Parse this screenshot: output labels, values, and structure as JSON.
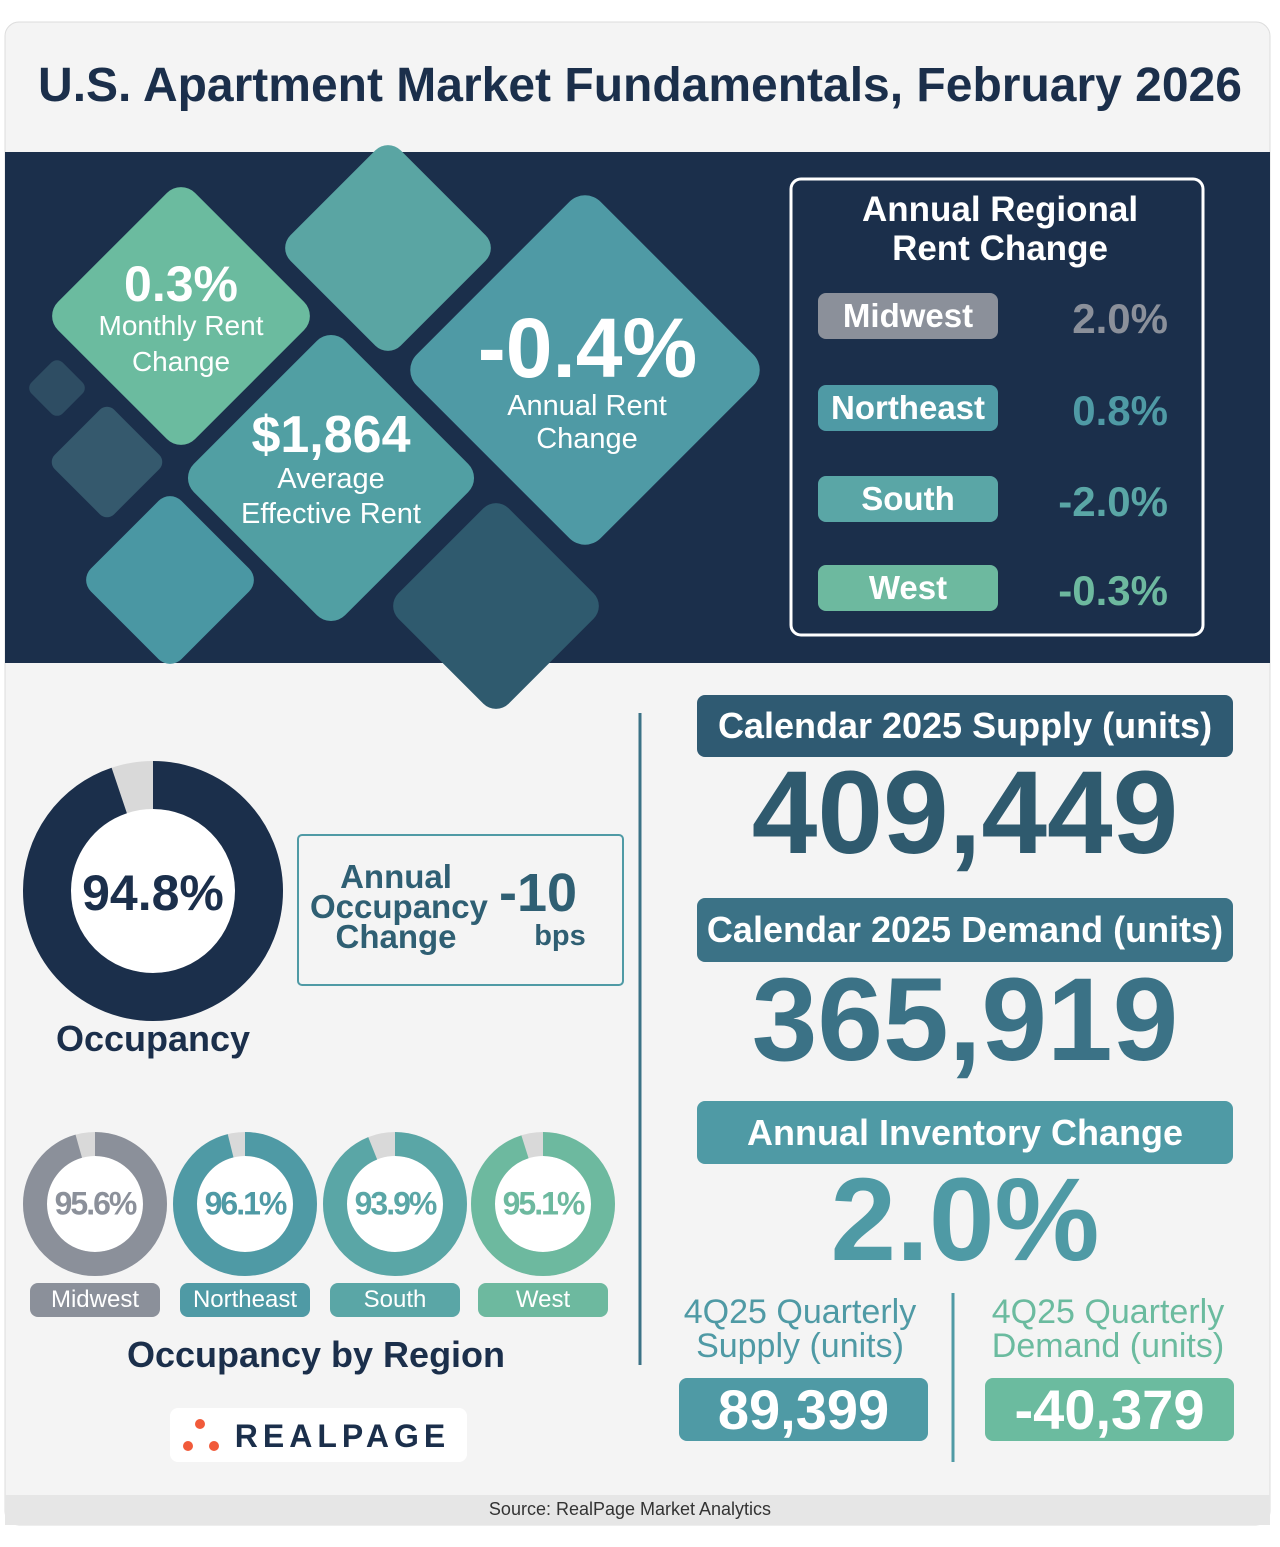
{
  "title": "U.S. Apartment Market Fundamentals, February 2026",
  "kpis": [
    {
      "value": "0.3%",
      "label": "Monthly Rent Change"
    },
    {
      "value": "$1,864",
      "label": "Average Effective Rent"
    },
    {
      "value": "-0.4%",
      "label": "Annual Rent Change"
    }
  ],
  "regional_rent": {
    "title": "Annual Regional Rent Change",
    "rows": [
      {
        "region": "Midwest",
        "value": "2.0%"
      },
      {
        "region": "Northeast",
        "value": "0.8%"
      },
      {
        "region": "South",
        "value": "-2.0%"
      },
      {
        "region": "West",
        "value": "-0.3%"
      }
    ]
  },
  "occupancy": {
    "value": 94.8,
    "label": "94.8%",
    "caption": "Occupancy"
  },
  "occupancy_change": {
    "label": "Annual Occupancy Change",
    "value": "-10",
    "unit": "bps"
  },
  "regional_occupancy": {
    "title": "Occupancy by Region",
    "regions": [
      {
        "name": "Midwest",
        "value": 95.6,
        "label": "95.6%"
      },
      {
        "name": "Northeast",
        "value": 96.1,
        "label": "96.1%"
      },
      {
        "name": "South",
        "value": 93.9,
        "label": "93.9%"
      },
      {
        "name": "West",
        "value": 95.1,
        "label": "95.1%"
      }
    ]
  },
  "supply": {
    "label": "Calendar 2025 Supply (units)",
    "value": "409,449"
  },
  "demand": {
    "label": "Calendar 2025 Demand (units)",
    "value": "365,919"
  },
  "inventory": {
    "label": "Annual Inventory Change",
    "value": "2.0%"
  },
  "quarterly_supply": {
    "label": "4Q25 Quarterly Supply (units)",
    "value": "89,399"
  },
  "quarterly_demand": {
    "label": "4Q25 Quarterly Demand (units)",
    "value": "-40,379"
  },
  "logo": "REALPAGE",
  "source": "Source: RealPage Market Analytics"
}
